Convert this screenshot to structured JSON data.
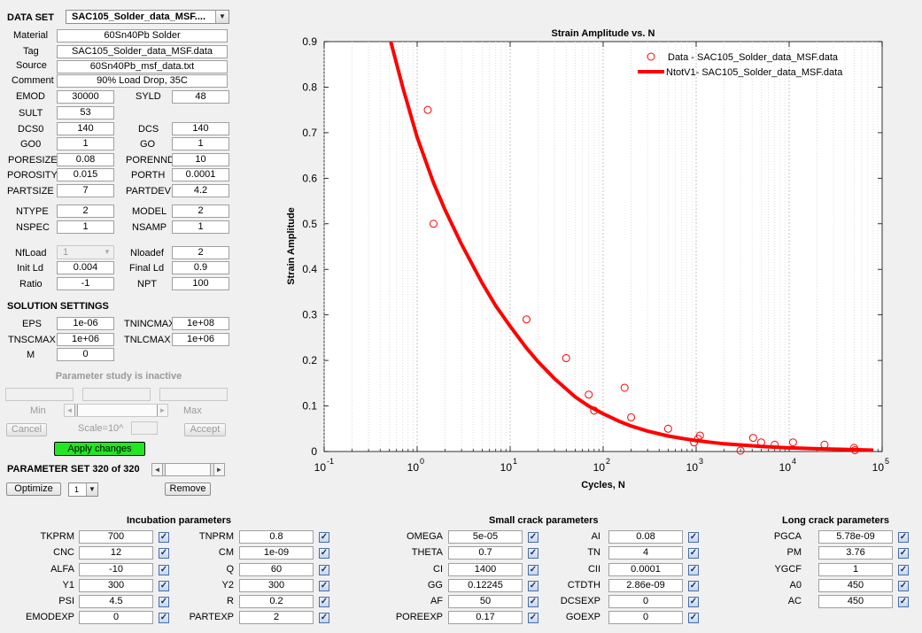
{
  "dataset": {
    "label": "DATA SET",
    "selected": "SAC105_Solder_data_MSF...."
  },
  "info": {
    "material_label": "Material",
    "material": "60Sn40Pb Solder",
    "tag_label": "Tag",
    "tag": "SAC105_Solder_data_MSF.data",
    "source_label": "Source",
    "source": "60Sn40Pb_msf_data.txt",
    "comment_label": "Comment",
    "comment": "90% Load Drop, 35C"
  },
  "params": {
    "EMOD": "30000",
    "SYLD": "48",
    "SULT": "53",
    "DCS0": "140",
    "DCS": "140",
    "GO0": "1",
    "GO": "1",
    "PORESIZE": "0.08",
    "PORENND": "10",
    "POROSITY": "0.015",
    "PORTH": "0.0001",
    "PARTSIZE": "7",
    "PARTDEV": "4.2",
    "NTYPE": "2",
    "MODEL": "2",
    "NSPEC": "1",
    "NSAMP": "1",
    "NfLoad": "1",
    "Nloadef": "2",
    "InitLd": "0.004",
    "FinalLd": "0.9",
    "Ratio": "-1",
    "NPT": "100"
  },
  "labels": {
    "EMOD": "EMOD",
    "SYLD": "SYLD",
    "SULT": "SULT",
    "DCS0": "DCS0",
    "DCS": "DCS",
    "GO0": "GO0",
    "GO": "GO",
    "PORESIZE": "PORESIZE",
    "PORENND": "PORENND",
    "POROSITY": "POROSITY",
    "PORTH": "PORTH",
    "PARTSIZE": "PARTSIZE",
    "PARTDEV": "PARTDEV",
    "NTYPE": "NTYPE",
    "MODEL": "MODEL",
    "NSPEC": "NSPEC",
    "NSAMP": "NSAMP",
    "NfLoad": "NfLoad",
    "Nloadef": "Nloadef",
    "InitLd": "Init Ld",
    "FinalLd": "Final Ld",
    "Ratio": "Ratio",
    "NPT": "NPT"
  },
  "solution": {
    "title": "SOLUTION SETTINGS",
    "EPS_label": "EPS",
    "EPS": "1e-06",
    "TNINCMAX_label": "TNINCMAX",
    "TNINCMAX": "1e+08",
    "TNSCMAX_label": "TNSCMAX",
    "TNSCMAX": "1e+06",
    "TNLCMAX_label": "TNLCMAX",
    "TNLCMAX": "1e+06",
    "M_label": "M",
    "M": "0"
  },
  "study": {
    "inactive": "Parameter study is inactive",
    "min": "Min",
    "max": "Max",
    "cancel": "Cancel",
    "scale": "Scale=10^",
    "accept": "Accept",
    "apply": "Apply changes"
  },
  "paramset": {
    "label": "PARAMETER SET 320 of 320",
    "optimize": "Optimize",
    "opt_value": "1",
    "remove": "Remove"
  },
  "incubation": {
    "title": "Incubation parameters",
    "rows": [
      {
        "l1": "TKPRM",
        "v1": "700",
        "l2": "TNPRM",
        "v2": "0.8"
      },
      {
        "l1": "CNC",
        "v1": "12",
        "l2": "CM",
        "v2": "1e-09"
      },
      {
        "l1": "ALFA",
        "v1": "-10",
        "l2": "Q",
        "v2": "60"
      },
      {
        "l1": "Y1",
        "v1": "300",
        "l2": "Y2",
        "v2": "300"
      },
      {
        "l1": "PSI",
        "v1": "4.5",
        "l2": "R",
        "v2": "0.2"
      },
      {
        "l1": "EMODEXP",
        "v1": "0",
        "l2": "PARTEXP",
        "v2": "2"
      }
    ]
  },
  "smallcrack": {
    "title": "Small crack parameters",
    "rows": [
      {
        "l1": "OMEGA",
        "v1": "5e-05",
        "l2": "AI",
        "v2": "0.08"
      },
      {
        "l1": "THETA",
        "v1": "0.7",
        "l2": "TN",
        "v2": "4"
      },
      {
        "l1": "CI",
        "v1": "1400",
        "l2": "CII",
        "v2": "0.0001"
      },
      {
        "l1": "GG",
        "v1": "0.12245",
        "l2": "CTDTH",
        "v2": "2.86e-09"
      },
      {
        "l1": "AF",
        "v1": "50",
        "l2": "DCSEXP",
        "v2": "0"
      },
      {
        "l1": "POREEXP",
        "v1": "0.17",
        "l2": "GOEXP",
        "v2": "0"
      }
    ]
  },
  "longcrack": {
    "title": "Long crack parameters",
    "rows": [
      {
        "l": "PGCA",
        "v": "5.78e-09"
      },
      {
        "l": "PM",
        "v": "3.76"
      },
      {
        "l": "YGCF",
        "v": "1"
      },
      {
        "l": "A0",
        "v": "450"
      },
      {
        "l": "AC",
        "v": "450"
      }
    ]
  },
  "chart_data": {
    "type": "scatter",
    "title": "Strain Amplitude vs. N",
    "xlabel": "Cycles, N",
    "ylabel": "Strain Amplitude",
    "xscale": "log",
    "xlim": [
      0.1,
      100000
    ],
    "ylim": [
      0,
      0.9
    ],
    "xticks": [
      "10",
      "10",
      "10",
      "10",
      "10",
      "10",
      "10"
    ],
    "xtick_exps": [
      "-1",
      "0",
      "1",
      "2",
      "3",
      "4",
      "5"
    ],
    "yticks": [
      "0",
      "0.1",
      "0.2",
      "0.3",
      "0.4",
      "0.5",
      "0.6",
      "0.7",
      "0.8",
      "0.9"
    ],
    "legend_position": "top-right",
    "series": [
      {
        "name": "Data -  SAC105_Solder_data_MSF.data",
        "kind": "markers",
        "color": "#ff0000",
        "x": [
          1.3,
          1.5,
          15,
          40,
          70,
          80,
          170,
          200,
          500,
          950,
          1050,
          1100,
          3000,
          4100,
          5000,
          7000,
          11000,
          24000,
          50000,
          51000
        ],
        "y": [
          0.75,
          0.5,
          0.29,
          0.205,
          0.125,
          0.09,
          0.14,
          0.075,
          0.05,
          0.02,
          0.028,
          0.035,
          0.002,
          0.03,
          0.02,
          0.015,
          0.02,
          0.015,
          0.008,
          0.003
        ]
      },
      {
        "name": "NtotV1-  SAC105_Solder_data_MSF.data",
        "kind": "line",
        "color": "#ff0000",
        "x": [
          0.52,
          0.7,
          1,
          1.5,
          2,
          3,
          5,
          7,
          10,
          15,
          20,
          30,
          50,
          70,
          100,
          150,
          200,
          300,
          500,
          700,
          1000,
          2000,
          5000,
          10000,
          20000,
          50000,
          80000
        ],
        "y": [
          0.9,
          0.8,
          0.69,
          0.59,
          0.53,
          0.455,
          0.37,
          0.32,
          0.275,
          0.227,
          0.197,
          0.16,
          0.12,
          0.1,
          0.083,
          0.066,
          0.056,
          0.045,
          0.034,
          0.029,
          0.024,
          0.017,
          0.011,
          0.008,
          0.006,
          0.004,
          0.003
        ]
      }
    ]
  }
}
